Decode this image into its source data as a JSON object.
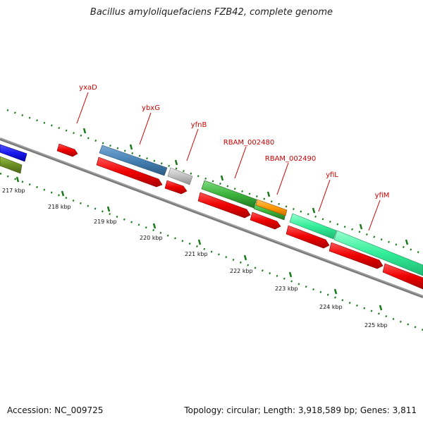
{
  "title": "Bacillus amyloliquefaciens FZB42, complete genome",
  "footer": {
    "accession": "Accession: NC_009725",
    "topology": "Topology: circular; Length: 3,918,589 bp; Genes: 3,811"
  },
  "colors": {
    "backbone": "#808080",
    "tick": "#1a7a1a",
    "label": "#cc0000",
    "cds_red": "#ee0000",
    "blue": "#1a1aee",
    "olive": "#6b8e23",
    "steelblue": "#4682b4",
    "grey": "#c0c0c0",
    "green": "#3cb43c",
    "orange": "#ff9900",
    "aqua": "#33ee99"
  },
  "scale_labels": [
    "217 kbp",
    "218 kbp",
    "219 kbp",
    "220 kbp",
    "221 kbp",
    "222 kbp",
    "223 kbp",
    "224 kbp",
    "225 kbp"
  ],
  "gene_labels": [
    "yxaD",
    "ybxG",
    "yfnB",
    "RBAM_002480",
    "RBAM_002490",
    "yfiL",
    "yfiM"
  ]
}
